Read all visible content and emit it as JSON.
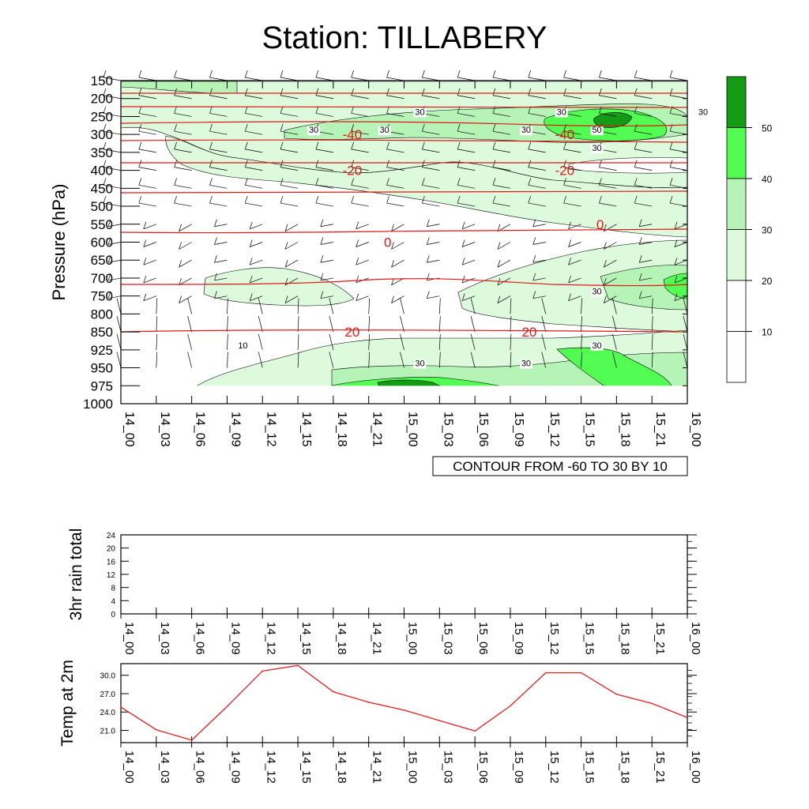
{
  "title": "Station: TILLABERY",
  "chart_data": [
    {
      "type": "contour",
      "name": "upper-air-cross-section",
      "ylabel": "Pressure (hPa)",
      "y_ticks": [
        "150",
        "200",
        "250",
        "300",
        "350",
        "400",
        "450",
        "500",
        "550",
        "600",
        "650",
        "700",
        "750",
        "800",
        "850",
        "925",
        "950",
        "975",
        "1000"
      ],
      "x_ticks": [
        "14_00",
        "14_03",
        "14_06",
        "14_09",
        "14_12",
        "14_15",
        "14_18",
        "14_21",
        "15_00",
        "15_03",
        "15_06",
        "15_09",
        "15_12",
        "15_15",
        "15_18",
        "15_21",
        "16_00"
      ],
      "info_label": "CONTOUR FROM -60 TO 30 BY 10",
      "shading_colors": [
        "#ffffff",
        "#ffffff",
        "#ddfadd",
        "#b6f3b6",
        "#52fc52",
        "#139b13"
      ],
      "colorbar_labels": [
        "10",
        "20",
        "30",
        "40",
        "50"
      ],
      "wind_contour_labels": [
        {
          "text": "30",
          "at_time": "15_00",
          "at_p": "250"
        },
        {
          "text": "30",
          "at_time": "15_12",
          "at_p": "250"
        },
        {
          "text": "30",
          "at_time": "14_15",
          "at_p": "300"
        },
        {
          "text": "30",
          "at_time": "14_21",
          "at_p": "300"
        },
        {
          "text": "30",
          "at_time": "15_09",
          "at_p": "300"
        },
        {
          "text": "30",
          "at_time": "15_15",
          "at_p": "350"
        },
        {
          "text": "50",
          "at_time": "15_15",
          "at_p": "300"
        },
        {
          "text": "30",
          "at_time": "16_00",
          "at_p": "250"
        },
        {
          "text": "30",
          "at_time": "15_15",
          "at_p": "750"
        },
        {
          "text": "30",
          "at_time": "15_15",
          "at_p": "925"
        },
        {
          "text": "30",
          "at_time": "15_00",
          "at_p": "950"
        },
        {
          "text": "30",
          "at_time": "15_09",
          "at_p": "950"
        },
        {
          "text": "10",
          "at_time": "14_09",
          "at_p": "925"
        }
      ],
      "temp_contour_labels": [
        {
          "text": "-40",
          "at_time": "14_18",
          "at_p": "300"
        },
        {
          "text": "-40",
          "at_time": "15_12",
          "at_p": "300"
        },
        {
          "text": "-20",
          "at_time": "14_18",
          "at_p": "400"
        },
        {
          "text": "-20",
          "at_time": "15_12",
          "at_p": "400"
        },
        {
          "text": "0",
          "at_time": "14_21",
          "at_p": "600"
        },
        {
          "text": "0",
          "at_time": "15_15",
          "at_p": "550"
        },
        {
          "text": "20",
          "at_time": "14_18",
          "at_p": "850"
        },
        {
          "text": "20",
          "at_time": "15_09",
          "at_p": "850"
        }
      ]
    },
    {
      "type": "line",
      "name": "3hr-rain-total",
      "ylabel": "3hr rain total",
      "y_ticks": [
        "0",
        "4",
        "8",
        "12",
        "16",
        "20",
        "24"
      ],
      "ylim": [
        0,
        24
      ],
      "x_ticks": [
        "14_00",
        "14_03",
        "14_06",
        "14_09",
        "14_12",
        "14_15",
        "14_18",
        "14_21",
        "15_00",
        "15_03",
        "15_06",
        "15_09",
        "15_12",
        "15_15",
        "15_18",
        "15_21",
        "16_00"
      ],
      "values": []
    },
    {
      "type": "line",
      "name": "temp-at-2m",
      "ylabel": "Temp at 2m",
      "y_ticks": [
        "21.0",
        "24.0",
        "27.0",
        "30.0"
      ],
      "ylim": [
        19.0,
        31.9
      ],
      "x_ticks": [
        "14_00",
        "14_03",
        "14_06",
        "14_09",
        "14_12",
        "14_15",
        "14_18",
        "14_21",
        "15_00",
        "15_03",
        "15_06",
        "15_09",
        "15_12",
        "15_15",
        "15_18",
        "15_21",
        "16_00"
      ],
      "values": [
        24.8,
        21.1,
        19.4,
        24.9,
        30.7,
        31.6,
        27.3,
        25.6,
        24.3,
        22.6,
        20.9,
        25.0,
        30.4,
        30.4,
        26.9,
        25.4,
        23.1
      ],
      "line_color": "#e32020"
    }
  ]
}
